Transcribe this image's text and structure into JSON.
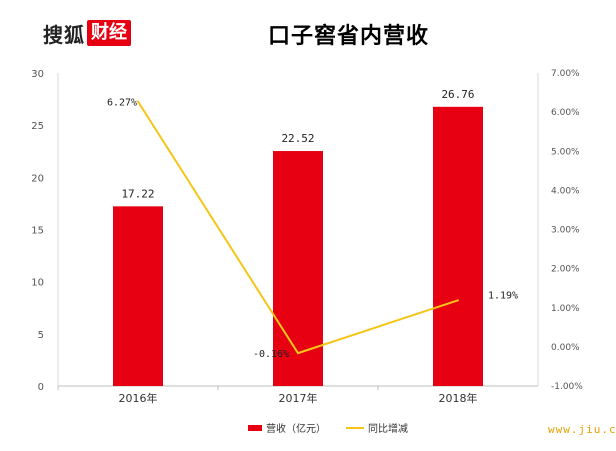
{
  "logo": {
    "part1": "搜狐",
    "part2": "财经"
  },
  "watermark": "www.jiu.cn",
  "chart_data": {
    "type": "bar",
    "title": "口子窖省内营收",
    "categories": [
      "2016年",
      "2017年",
      "2018年"
    ],
    "series": [
      {
        "name": "营收（亿元）",
        "type": "bar",
        "axis": "left",
        "values": [
          17.22,
          22.52,
          26.76
        ],
        "labels": [
          "17.22",
          "22.52",
          "26.76"
        ],
        "color": "#e60012"
      },
      {
        "name": "同比增减",
        "type": "line",
        "axis": "right",
        "values": [
          6.27,
          -0.16,
          1.19
        ],
        "labels": [
          "6.27%",
          "-0.16%",
          "1.19%"
        ],
        "color": "#f5c518"
      }
    ],
    "left_axis": {
      "min": 0,
      "max": 30,
      "ticks": [
        "0",
        "5",
        "10",
        "15",
        "20",
        "25",
        "30"
      ]
    },
    "right_axis": {
      "min": -1,
      "max": 7,
      "ticks": [
        "-1.00%",
        "0.00%",
        "1.00%",
        "2.00%",
        "3.00%",
        "4.00%",
        "5.00%",
        "6.00%",
        "7.00%"
      ]
    },
    "grid": false,
    "legend": "bottom"
  }
}
